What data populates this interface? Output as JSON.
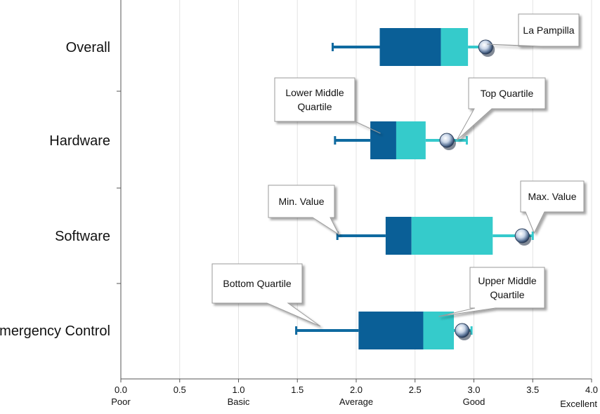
{
  "chart_data": {
    "type": "box",
    "orientation": "horizontal",
    "x_range": [
      0,
      4
    ],
    "grid": "vertical-major",
    "x_ticks": [
      {
        "value": 0.0,
        "label": "0.0",
        "sub": "Poor"
      },
      {
        "value": 0.5,
        "label": "0.5",
        "sub": ""
      },
      {
        "value": 1.0,
        "label": "1.0",
        "sub": "Basic"
      },
      {
        "value": 1.5,
        "label": "1.5",
        "sub": ""
      },
      {
        "value": 2.0,
        "label": "2.0",
        "sub": "Average"
      },
      {
        "value": 2.5,
        "label": "2.5",
        "sub": ""
      },
      {
        "value": 3.0,
        "label": "3.0",
        "sub": "Good"
      },
      {
        "value": 3.5,
        "label": "3.5",
        "sub": ""
      },
      {
        "value": 4.0,
        "label": "4.0",
        "sub": "Excellent"
      }
    ],
    "colors": {
      "whisker_low": "#0f6aa0",
      "whisker_high": "#35c9cc",
      "box_lower": "#0a5f97",
      "box_upper": "#35cbcb"
    },
    "categories": [
      {
        "name": "Overall",
        "min": 1.8,
        "q1": 2.2,
        "median": 2.72,
        "q3": 2.95,
        "max": 3.1,
        "marker": 3.1
      },
      {
        "name": "Hardware",
        "min": 1.82,
        "q1": 2.12,
        "median": 2.34,
        "q3": 2.59,
        "max": 2.94,
        "marker": 2.77
      },
      {
        "name": "Software",
        "min": 1.84,
        "q1": 2.25,
        "median": 2.47,
        "q3": 3.16,
        "max": 3.5,
        "marker": 3.41
      },
      {
        "name": "Emergency Control",
        "min": 1.49,
        "q1": 2.02,
        "median": 2.57,
        "q3": 2.83,
        "max": 2.98,
        "marker": 2.9
      }
    ],
    "annotations": [
      {
        "id": "la-pampilla",
        "lines": [
          "La Pampilla"
        ],
        "category": "Overall",
        "point": "marker"
      },
      {
        "id": "lower-middle-quartile",
        "lines": [
          "Lower Middle",
          "Quartile"
        ],
        "category": "Hardware",
        "point": "lower-box"
      },
      {
        "id": "top-quartile",
        "lines": [
          "Top Quartile"
        ],
        "category": "Hardware",
        "point": "upper-whisker"
      },
      {
        "id": "min-value",
        "lines": [
          "Min.  Value"
        ],
        "category": "Software",
        "point": "min"
      },
      {
        "id": "max-value",
        "lines": [
          "Max.  Value"
        ],
        "category": "Software",
        "point": "max"
      },
      {
        "id": "bottom-quartile",
        "lines": [
          "Bottom Quartile"
        ],
        "category": "Emergency Control",
        "point": "lower-whisker"
      },
      {
        "id": "upper-middle-quartile",
        "lines": [
          "Upper Middle",
          "Quartile"
        ],
        "category": "Emergency Control",
        "point": "upper-box"
      }
    ]
  }
}
